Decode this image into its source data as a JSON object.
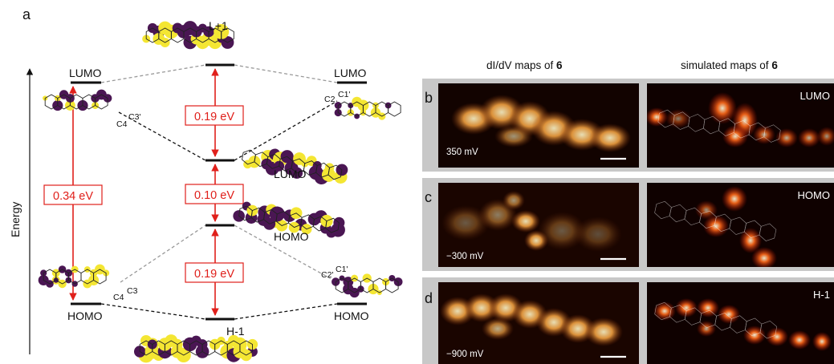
{
  "panel_a": {
    "letter": "a",
    "axis_label": "Energy",
    "left_lumo": "LUMO",
    "left_homo": "HOMO",
    "right_lumo": "LUMO",
    "right_homo": "HOMO",
    "mid_l1": "L+1",
    "mid_lumo": "LUMO",
    "mid_homo": "HOMO",
    "mid_h1": "H-1",
    "gap_left": "0.34 eV",
    "gap_top": "0.19 eV",
    "gap_mid": "0.10 eV",
    "gap_bottom": "0.19 eV",
    "atom_c4_top": "C4",
    "atom_c3_top": "C3'",
    "atom_c4_bot": "C4",
    "atom_c3_bot": "C3",
    "atom_c2_top": "C2",
    "atom_c1_top": "C1'",
    "atom_c2_bot": "C2'",
    "atom_c1_bot": "C1'"
  },
  "maps": {
    "header_exp_prefix": "dI/dV maps of ",
    "header_exp_num": "6",
    "header_sim_prefix": "simulated maps of ",
    "header_sim_num": "6",
    "rows": [
      {
        "letter": "b",
        "bias": "350 mV",
        "orbital": "LUMO"
      },
      {
        "letter": "c",
        "bias": "−300 mV",
        "orbital": "HOMO"
      },
      {
        "letter": "d",
        "bias": "−900 mV",
        "orbital": "H-1"
      }
    ]
  },
  "colors": {
    "lobe_yellow": "#f4e633",
    "lobe_purple": "#4a1653",
    "gap_red": "#e0201b"
  }
}
